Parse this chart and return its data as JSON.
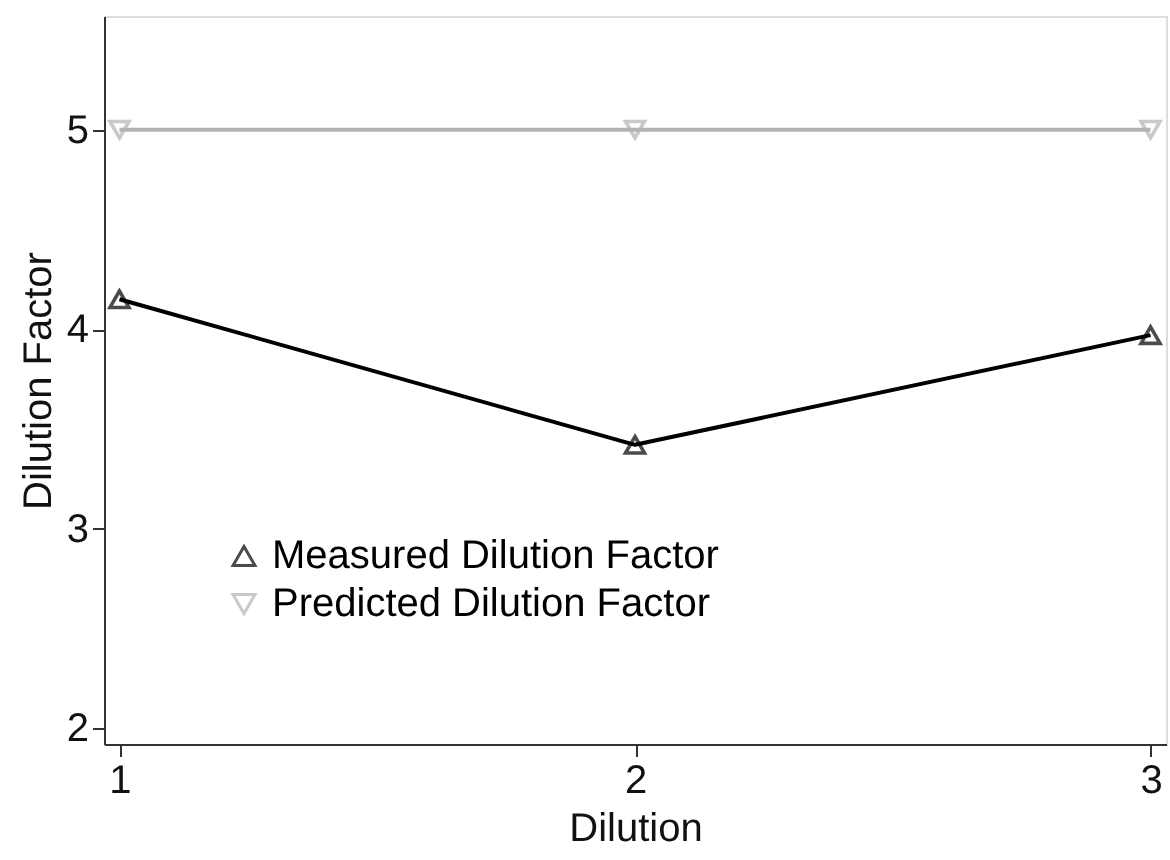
{
  "chart_data": {
    "type": "line",
    "xlabel": "Dilution",
    "ylabel": "Dilution Factor",
    "x": [
      1,
      2,
      3
    ],
    "xlim": [
      0.97,
      3.03
    ],
    "xticks": [
      1,
      2,
      3
    ],
    "ylim": [
      1.92,
      5.57
    ],
    "yticks": [
      2,
      3,
      4,
      5
    ],
    "grid": false,
    "legend": "bottom left",
    "line_style": "solid",
    "series": [
      {
        "name": "Measured Dilution Factor",
        "color": "#000000",
        "marker": "triangle",
        "values": [
          4.15,
          3.42,
          3.97
        ]
      },
      {
        "name": "Predicted Dilution Factor",
        "color": "#b3b3b3",
        "marker": "triangle_down",
        "values": [
          5,
          5,
          5
        ]
      }
    ]
  }
}
